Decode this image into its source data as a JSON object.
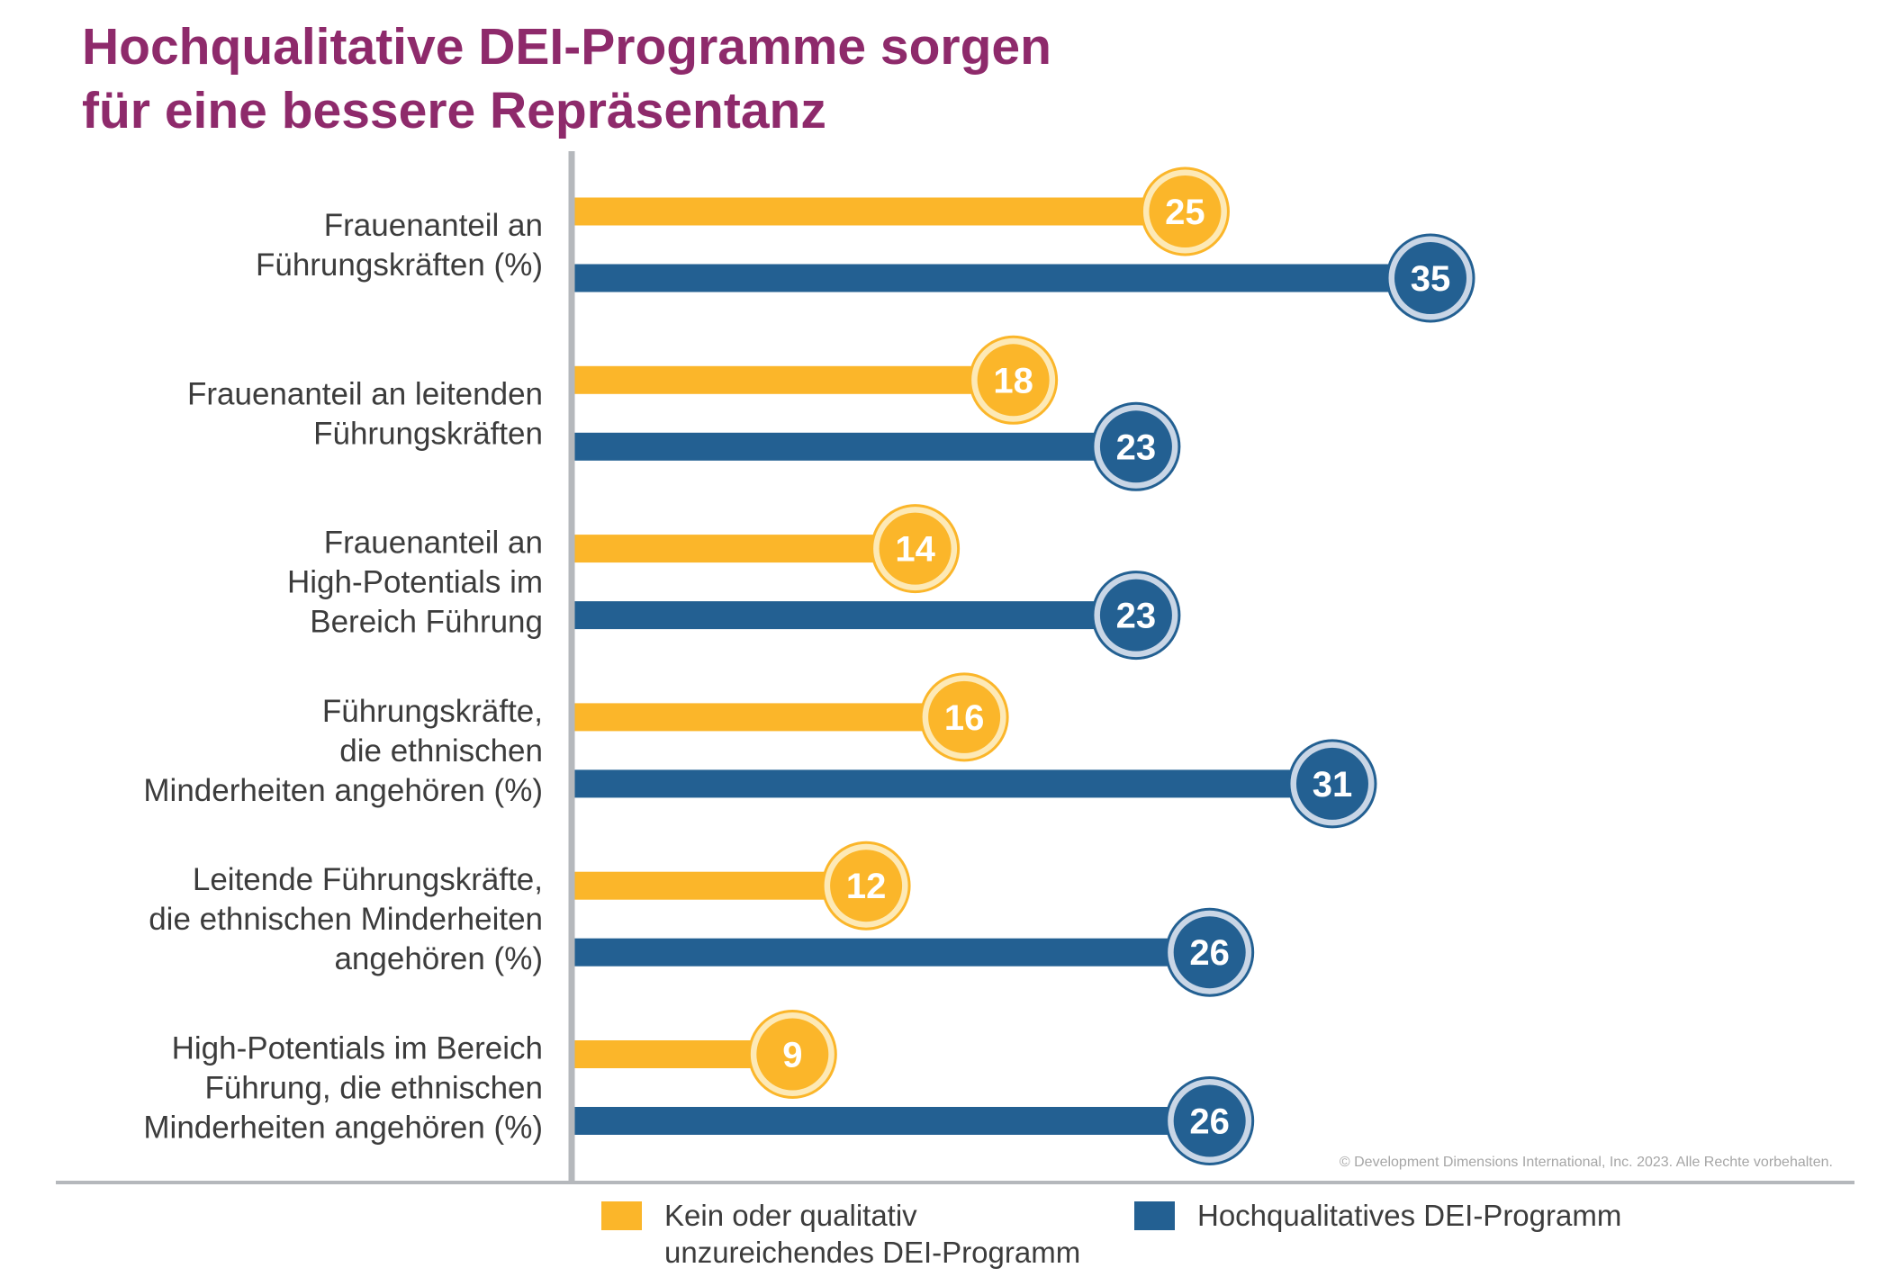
{
  "chart_data": {
    "type": "bar",
    "orientation": "horizontal",
    "title": [
      "Hochqualitative DEI-Programme sorgen",
      "für eine bessere Repräsentanz"
    ],
    "categories": [
      [
        "Frauenanteil an",
        "Führungskräften (%)"
      ],
      [
        "Frauenanteil an leitenden",
        "Führungskräften"
      ],
      [
        "Frauenanteil an",
        "High-Potentials im",
        "Bereich Führung"
      ],
      [
        "Führungskräfte,",
        "die ethnischen",
        "Minderheiten angehören (%)"
      ],
      [
        "Leitende Führungskräfte,",
        "die ethnischen Minderheiten",
        "angehören (%)"
      ],
      [
        "High-Potentials im Bereich",
        "Führung, die ethnischen",
        "Minderheiten angehören (%)"
      ]
    ],
    "series": [
      {
        "name": "Kein oder qualitativ unzureichendes DEI-Programm",
        "legend_lines": [
          "Kein oder qualitativ",
          "unzureichendes DEI-Programm"
        ],
        "color": "#fbb62a",
        "ring_color": "#fde9b6",
        "values": [
          25,
          18,
          14,
          16,
          12,
          9
        ]
      },
      {
        "name": "Hochqualitatives DEI-Programm",
        "legend_lines": [
          "Hochqualitatives DEI-Programm"
        ],
        "color": "#236092",
        "ring_color": "#c9d6e6",
        "values": [
          35,
          23,
          23,
          31,
          26,
          26
        ]
      }
    ],
    "xlim": [
      0,
      35
    ],
    "grid": false,
    "legend": "bottom",
    "copyright": "© Development Dimensions International, Inc. 2023. Alle Rechte vorbehalten."
  }
}
